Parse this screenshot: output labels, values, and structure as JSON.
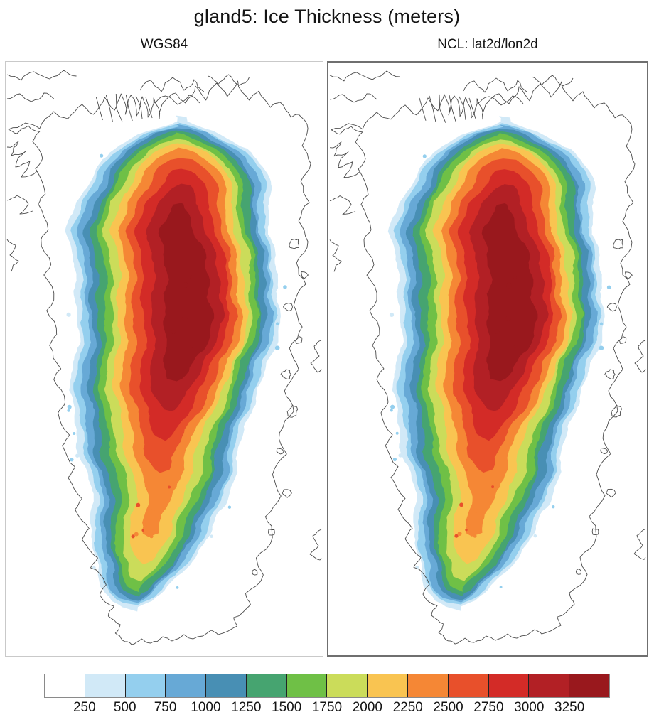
{
  "title": "gland5: Ice Thickness (meters)",
  "panels": [
    {
      "label": "WGS84"
    },
    {
      "label": "NCL: lat2d/lon2d"
    }
  ],
  "chart_data": {
    "type": "heatmap",
    "subtype": "filled-contour-map",
    "title": "gland5: Ice Thickness (meters)",
    "variable": "Ice Thickness",
    "units": "meters",
    "region": "Greenland",
    "subplots": [
      "WGS84",
      "NCL: lat2d/lon2d"
    ],
    "contour_levels": [
      250,
      500,
      750,
      1000,
      1250,
      1500,
      1750,
      2000,
      2250,
      2500,
      2750,
      3000,
      3250
    ],
    "colors": [
      "#FFFFFF",
      "#D1E9F7",
      "#94CFEE",
      "#67A9D6",
      "#488FB4",
      "#46A470",
      "#6FC046",
      "#CBDC5A",
      "#F9C451",
      "#F58735",
      "#E8502B",
      "#D32B27",
      "#B22025",
      "#99181D"
    ],
    "legend_position": "bottom",
    "coastline_color": "#4a4a4a"
  }
}
